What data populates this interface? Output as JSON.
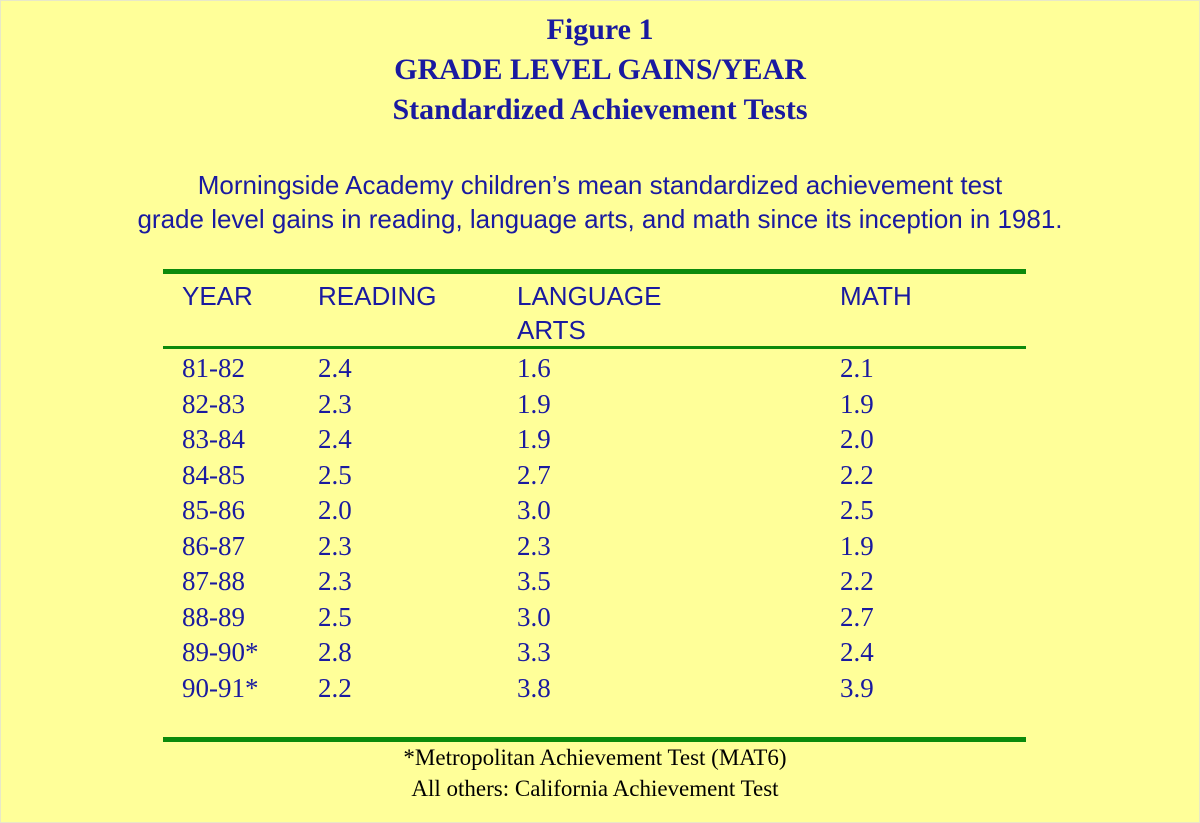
{
  "chart_data": {
    "type": "table",
    "title": "Figure 1",
    "subtitle_1": "GRADE LEVEL GAINS/YEAR",
    "subtitle_2": "Standardized Achievement Tests",
    "caption_line_1": "Morningside Academy children’s mean standardized achievement test",
    "caption_line_2": "grade level gains in reading, language arts, and math since its inception in 1981.",
    "columns": {
      "year": "YEAR",
      "reading": "READING",
      "language_line_1": "LANGUAGE",
      "language_line_2": "ARTS",
      "math": "MATH"
    },
    "rows": [
      {
        "year": "81-82",
        "reading": "2.4",
        "language": "1.6",
        "math": "2.1"
      },
      {
        "year": "82-83",
        "reading": "2.3",
        "language": "1.9",
        "math": "1.9"
      },
      {
        "year": "83-84",
        "reading": "2.4",
        "language": "1.9",
        "math": "2.0"
      },
      {
        "year": "84-85",
        "reading": "2.5",
        "language": "2.7",
        "math": "2.2"
      },
      {
        "year": "85-86",
        "reading": "2.0",
        "language": "3.0",
        "math": "2.5"
      },
      {
        "year": "86-87",
        "reading": "2.3",
        "language": "2.3",
        "math": "1.9"
      },
      {
        "year": "87-88",
        "reading": "2.3",
        "language": "3.5",
        "math": "2.2"
      },
      {
        "year": "88-89",
        "reading": "2.5",
        "language": "3.0",
        "math": "2.7"
      },
      {
        "year": "89-90*",
        "reading": "2.8",
        "language": "3.3",
        "math": "2.4"
      },
      {
        "year": "90-91*",
        "reading": "2.2",
        "language": "3.8",
        "math": "3.9"
      }
    ],
    "footnote_1": "*Metropolitan Achievement Test (MAT6)",
    "footnote_2": "All others: California Achievement Test"
  },
  "colors": {
    "background": "#ffff99",
    "text": "#1a1aa0",
    "rule": "#0c8a0c"
  }
}
